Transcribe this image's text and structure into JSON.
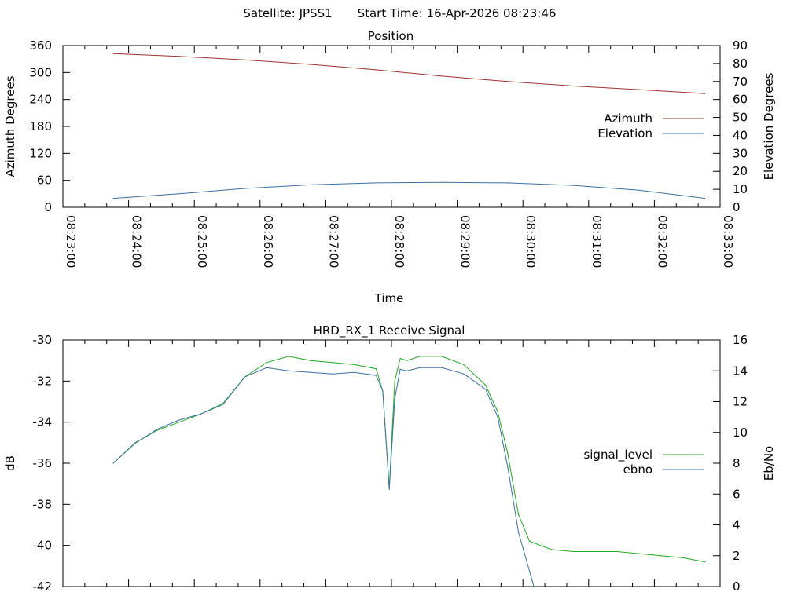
{
  "header": {
    "satellite_label": "Satellite: JPSS1",
    "start_time_label": "Start Time: 16-Apr-2026 08:23:46"
  },
  "chart_data": [
    {
      "type": "line",
      "title": "Position",
      "xlabel": "Time",
      "ylabel": "Azimuth Degrees",
      "y2label": "Elevation Degrees",
      "x_ticks": [
        "08:23:00",
        "08:24:00",
        "08:25:00",
        "08:26:00",
        "08:27:00",
        "08:28:00",
        "08:29:00",
        "08:30:00",
        "08:31:00",
        "08:32:00",
        "08:33:00"
      ],
      "x_range": [
        "08:23:00",
        "08:33:00"
      ],
      "ylim": [
        0,
        360
      ],
      "y_ticks": [
        "0",
        "60",
        "120",
        "180",
        "240",
        "300",
        "360"
      ],
      "y2lim": [
        0,
        90
      ],
      "y2_ticks": [
        "0",
        "10",
        "20",
        "30",
        "40",
        "50",
        "60",
        "70",
        "80",
        "90"
      ],
      "legend": "right",
      "series": [
        {
          "name": "Azimuth",
          "axis": "y",
          "color": "#a0322d",
          "x": [
            "08:23:46",
            "08:24:46",
            "08:25:46",
            "08:26:46",
            "08:27:46",
            "08:28:46",
            "08:29:46",
            "08:30:46",
            "08:31:46",
            "08:32:46"
          ],
          "values": [
            342,
            336,
            328,
            318,
            306,
            292,
            280,
            270,
            262,
            253
          ]
        },
        {
          "name": "Elevation",
          "axis": "y2",
          "color": "#3a6fa3",
          "x": [
            "08:23:46",
            "08:24:46",
            "08:25:46",
            "08:26:46",
            "08:27:46",
            "08:28:46",
            "08:29:46",
            "08:30:46",
            "08:31:46",
            "08:32:46"
          ],
          "values": [
            5.0,
            7.5,
            10.5,
            12.5,
            13.6,
            13.9,
            13.6,
            12.2,
            9.5,
            5.0
          ]
        }
      ]
    },
    {
      "type": "line",
      "title": "HRD_RX_1 Receive Signal",
      "ylabel": "dB",
      "y2label": "Eb/No",
      "x_range": [
        "08:23:00",
        "08:33:00"
      ],
      "ylim": [
        -42,
        -30
      ],
      "y_ticks": [
        "-30",
        "-32",
        "-34",
        "-36",
        "-38",
        "-40",
        "-42"
      ],
      "y2lim": [
        0,
        16
      ],
      "y2_ticks": [
        "0",
        "2",
        "4",
        "6",
        "8",
        "10",
        "12",
        "14",
        "16"
      ],
      "legend": "right",
      "series": [
        {
          "name": "signal_level",
          "axis": "y",
          "color": "#22aa22",
          "x": [
            "08:23:46",
            "08:24:06",
            "08:24:26",
            "08:24:46",
            "08:25:06",
            "08:25:26",
            "08:25:46",
            "08:26:06",
            "08:26:26",
            "08:26:46",
            "08:27:06",
            "08:27:26",
            "08:27:46",
            "08:27:52",
            "08:27:58",
            "08:28:03",
            "08:28:08",
            "08:28:14",
            "08:28:26",
            "08:28:46",
            "08:29:06",
            "08:29:26",
            "08:29:37",
            "08:29:46",
            "08:29:56",
            "08:30:06",
            "08:30:16",
            "08:30:26",
            "08:30:46",
            "08:31:06",
            "08:31:26",
            "08:31:46",
            "08:32:06",
            "08:32:26",
            "08:32:46"
          ],
          "values": [
            -36.0,
            -35.0,
            -34.4,
            -34.0,
            -33.6,
            -33.1,
            -31.8,
            -31.1,
            -30.8,
            -31.0,
            -31.1,
            -31.2,
            -31.4,
            -32.5,
            -37.2,
            -32.0,
            -30.9,
            -31.0,
            -30.8,
            -30.8,
            -31.2,
            -32.2,
            -33.5,
            -35.5,
            -38.5,
            -39.8,
            -40.0,
            -40.2,
            -40.3,
            -40.3,
            -40.3,
            -40.4,
            -40.5,
            -40.6,
            -40.8
          ]
        },
        {
          "name": "ebno",
          "axis": "y2",
          "color": "#3a6fa3",
          "x": [
            "08:23:46",
            "08:24:06",
            "08:24:26",
            "08:24:46",
            "08:25:06",
            "08:25:26",
            "08:25:46",
            "08:26:06",
            "08:26:26",
            "08:26:46",
            "08:27:06",
            "08:27:26",
            "08:27:46",
            "08:27:52",
            "08:27:58",
            "08:28:03",
            "08:28:08",
            "08:28:14",
            "08:28:26",
            "08:28:46",
            "08:29:06",
            "08:29:26",
            "08:29:37",
            "08:29:46",
            "08:29:56",
            "08:30:06",
            "08:30:10"
          ],
          "values": [
            8.0,
            9.3,
            10.2,
            10.8,
            11.2,
            11.8,
            13.6,
            14.2,
            14.0,
            13.9,
            13.8,
            13.9,
            13.7,
            12.7,
            6.3,
            12.2,
            14.1,
            14.0,
            14.2,
            14.2,
            13.8,
            12.8,
            11.0,
            7.8,
            3.5,
            1.0,
            0.0
          ]
        }
      ]
    }
  ]
}
